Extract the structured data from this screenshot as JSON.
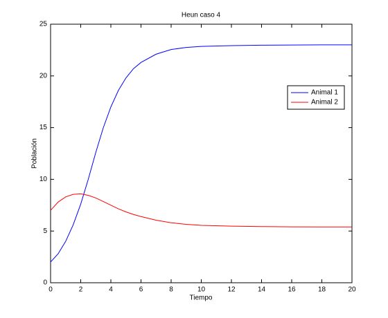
{
  "chart_data": {
    "type": "line",
    "title": "Heun caso 4",
    "x_label": "Tiempo",
    "y_label": "Población",
    "x": [
      0,
      0.5,
      1,
      1.5,
      2,
      2.5,
      3,
      3.5,
      4,
      4.5,
      5,
      5.5,
      6,
      7,
      8,
      9,
      10,
      12,
      14,
      16,
      18,
      20
    ],
    "series": [
      {
        "name": "Animal 1",
        "color": "#0000ff",
        "values": [
          2,
          2.8,
          4,
          5.6,
          7.6,
          10,
          12.6,
          15,
          17,
          18.6,
          19.8,
          20.7,
          21.3,
          22.1,
          22.55,
          22.75,
          22.85,
          22.93,
          22.97,
          22.99,
          23,
          23
        ]
      },
      {
        "name": "Animal 2",
        "color": "#ff0000",
        "values": [
          7,
          7.8,
          8.3,
          8.55,
          8.6,
          8.45,
          8.2,
          7.85,
          7.5,
          7.15,
          6.85,
          6.6,
          6.4,
          6.05,
          5.8,
          5.65,
          5.55,
          5.47,
          5.43,
          5.41,
          5.4,
          5.4
        ]
      }
    ],
    "xlim": [
      0,
      20
    ],
    "xticks": [
      0,
      2,
      4,
      6,
      8,
      10,
      12,
      14,
      16,
      18,
      20
    ],
    "ylim": [
      0,
      25
    ],
    "yticks": [
      0,
      5,
      10,
      15,
      20,
      25
    ],
    "grid": false,
    "legend": "upper right"
  }
}
